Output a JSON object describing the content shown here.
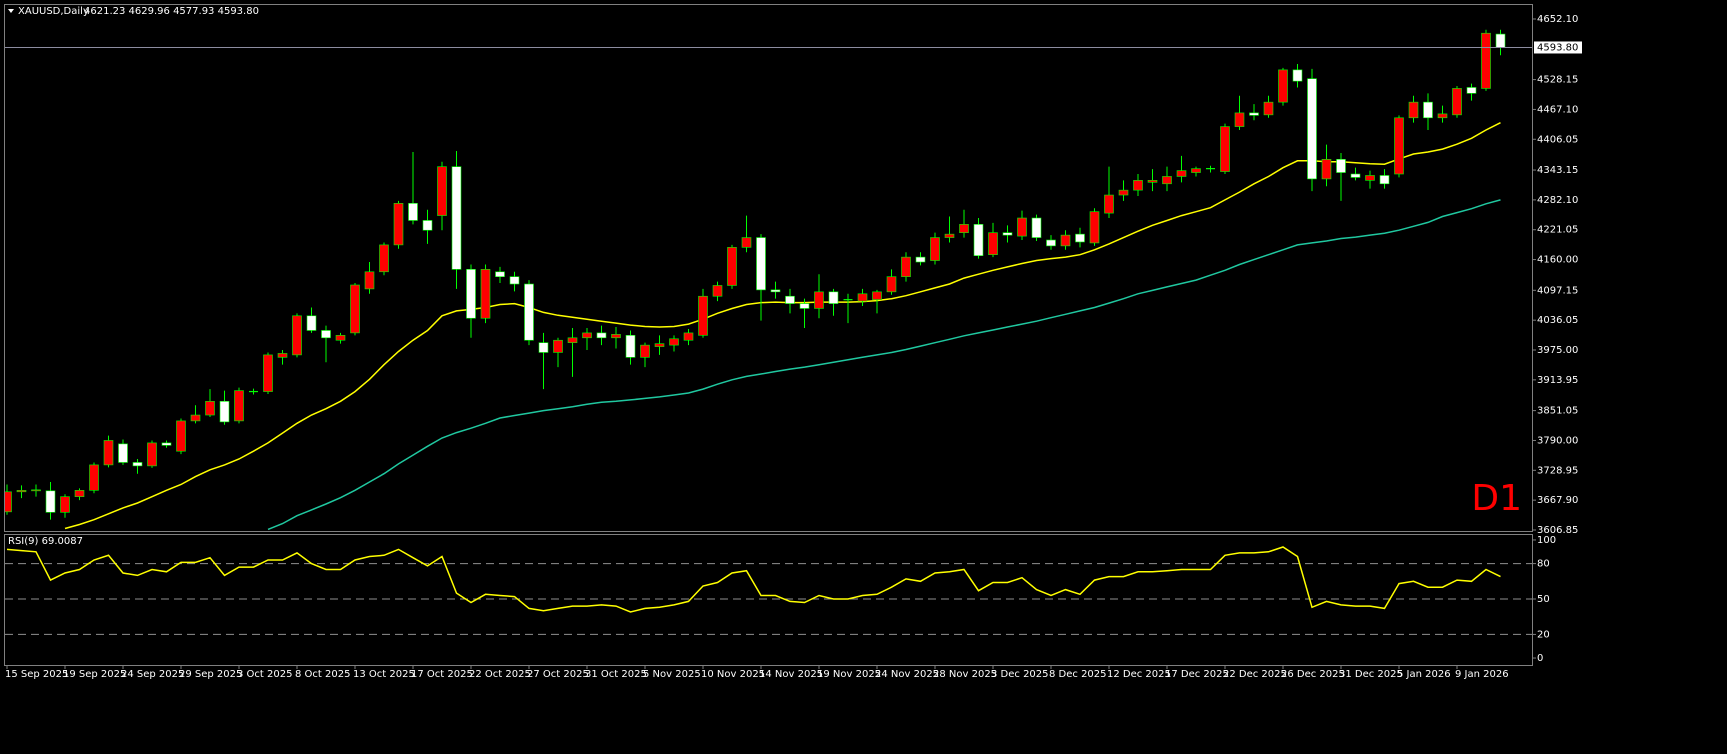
{
  "chart_data": [
    {
      "type": "candlestick",
      "title": "XAUUSD,Daily",
      "subtitle": "4621.23 4629.96 4577.93 4593.80",
      "annotation": "D1",
      "categories": [
        "15 Sep 2025",
        null,
        null,
        null,
        "19 Sep 2025",
        null,
        null,
        null,
        "24 Sep 2025",
        null,
        null,
        null,
        "29 Sep 2025",
        null,
        null,
        null,
        "3 Oct 2025",
        null,
        null,
        null,
        "8 Oct 2025",
        null,
        null,
        null,
        "13 Oct 2025",
        null,
        null,
        null,
        "17 Oct 2025",
        null,
        null,
        null,
        "22 Oct 2025",
        null,
        null,
        null,
        "27 Oct 2025",
        null,
        null,
        null,
        "31 Oct 2025",
        null,
        null,
        null,
        "5 Nov 2025",
        null,
        null,
        null,
        "10 Nov 2025",
        null,
        null,
        null,
        "14 Nov 2025",
        null,
        null,
        null,
        "19 Nov 2025",
        null,
        null,
        null,
        "24 Nov 2025",
        null,
        null,
        null,
        "28 Nov 2025",
        null,
        null,
        null,
        "3 Dec 2025",
        null,
        null,
        null,
        "8 Dec 2025",
        null,
        null,
        null,
        "12 Dec 2025",
        null,
        null,
        null,
        "17 Dec 2025",
        null,
        null,
        null,
        "22 Dec 2025",
        null,
        null,
        null,
        "26 Dec 2025",
        null,
        null,
        null,
        "31 Dec 2025",
        null,
        null,
        null,
        "5 Jan 2026",
        null,
        null,
        null,
        "9 Jan 2026",
        null,
        null,
        null
      ],
      "open": [
        3644,
        3685,
        3688,
        3687,
        3643,
        3675,
        3688,
        3740,
        3783,
        3745,
        3738,
        3785,
        3768,
        3830,
        3842,
        3870,
        3830,
        3890,
        3890,
        3960,
        3965,
        4045,
        4015,
        3995,
        4010,
        4100,
        4135,
        4190,
        4275,
        4240,
        4250,
        4350,
        4140,
        4040,
        4135,
        4125,
        4110,
        3990,
        3970,
        3990,
        4000,
        4010,
        4000,
        4005,
        3960,
        3982,
        3985,
        3995,
        4005,
        4085,
        4107,
        4185,
        4205,
        4098,
        4085,
        4070,
        4060,
        4094,
        4078,
        4075,
        4078,
        4094,
        4125,
        4165,
        4158,
        4205,
        4215,
        4232,
        4170,
        4215,
        4208,
        4245,
        4200,
        4188,
        4212,
        4194,
        4255,
        4292,
        4302,
        4318,
        4315,
        4330,
        4338,
        4346,
        4340,
        4432,
        4460,
        4456,
        4482,
        4548,
        4530,
        4325,
        4365,
        4335,
        4322,
        4332,
        4335,
        4450,
        4482,
        4450,
        4456,
        4512,
        4510,
        4621.23
      ],
      "high": [
        3700,
        3698,
        3700,
        3705,
        3680,
        3692,
        3745,
        3800,
        3792,
        3752,
        3790,
        3790,
        3835,
        3862,
        3895,
        3892,
        3898,
        3896,
        3970,
        3975,
        4050,
        4062,
        4025,
        4010,
        4112,
        4155,
        4195,
        4280,
        4380,
        4262,
        4360,
        4382,
        4150,
        4150,
        4145,
        4135,
        4118,
        4010,
        4000,
        4020,
        4020,
        4025,
        4022,
        4015,
        3990,
        4005,
        4005,
        4018,
        4100,
        4115,
        4190,
        4250,
        4212,
        4115,
        4100,
        4080,
        4130,
        4100,
        4090,
        4100,
        4098,
        4140,
        4175,
        4175,
        4215,
        4248,
        4262,
        4245,
        4235,
        4230,
        4260,
        4252,
        4210,
        4220,
        4225,
        4265,
        4350,
        4322,
        4335,
        4345,
        4350,
        4372,
        4350,
        4352,
        4438,
        4495,
        4478,
        4495,
        4552,
        4560,
        4550,
        4395,
        4378,
        4348,
        4342,
        4345,
        4455,
        4495,
        4500,
        4475,
        4515,
        4520,
        4630,
        4629.96
      ],
      "low": [
        3638,
        3672,
        3675,
        3628,
        3632,
        3668,
        3682,
        3735,
        3740,
        3722,
        3734,
        3775,
        3762,
        3825,
        3838,
        3822,
        3825,
        3884,
        3885,
        3945,
        3960,
        4010,
        3950,
        3988,
        4005,
        4090,
        4128,
        4182,
        4232,
        4192,
        4220,
        4100,
        4000,
        4030,
        4112,
        4095,
        3985,
        3895,
        3940,
        3920,
        3975,
        3985,
        3978,
        3945,
        3940,
        3965,
        3972,
        3985,
        4000,
        4075,
        4100,
        4175,
        4035,
        4080,
        4050,
        4020,
        4040,
        4045,
        4030,
        4065,
        4050,
        4088,
        4115,
        4148,
        4150,
        4195,
        4205,
        4162,
        4165,
        4195,
        4200,
        4198,
        4180,
        4180,
        4185,
        4188,
        4245,
        4280,
        4290,
        4300,
        4300,
        4318,
        4330,
        4338,
        4335,
        4425,
        4445,
        4450,
        4475,
        4512,
        4300,
        4310,
        4280,
        4322,
        4305,
        4305,
        4328,
        4440,
        4425,
        4440,
        4450,
        4485,
        4505,
        4577.93
      ],
      "close": [
        3685,
        3688,
        3689,
        3643,
        3675,
        3688,
        3740,
        3790,
        3745,
        3738,
        3785,
        3780,
        3830,
        3842,
        3870,
        3828,
        3892,
        3890,
        3965,
        3968,
        4045,
        4015,
        4000,
        4005,
        4108,
        4135,
        4190,
        4275,
        4240,
        4220,
        4350,
        4140,
        4040,
        4140,
        4125,
        4110,
        3995,
        3970,
        3995,
        4000,
        4010,
        4000,
        4007,
        3960,
        3985,
        3988,
        3998,
        4010,
        4085,
        4107,
        4185,
        4205,
        4098,
        4094,
        4070,
        4060,
        4094,
        4070,
        4078,
        4090,
        4094,
        4125,
        4165,
        4155,
        4205,
        4212,
        4232,
        4168,
        4215,
        4210,
        4245,
        4205,
        4188,
        4210,
        4196,
        4258,
        4292,
        4302,
        4322,
        4322,
        4330,
        4342,
        4346,
        4346,
        4432,
        4460,
        4455,
        4482,
        4548,
        4525,
        4325,
        4365,
        4338,
        4328,
        4332,
        4315,
        4450,
        4482,
        4450,
        4458,
        4510,
        4500,
        4623,
        4593.8
      ],
      "up_color": "#ff0000",
      "down_color": "#ffffff",
      "wick_color": "#00ff00",
      "overlays": [
        {
          "color": "#ffff00",
          "values": [
            null,
            null,
            null,
            null,
            3610,
            3618,
            3628,
            3640,
            3652,
            3662,
            3675,
            3688,
            3700,
            3716,
            3730,
            3740,
            3752,
            3768,
            3785,
            3805,
            3825,
            3842,
            3855,
            3870,
            3890,
            3915,
            3945,
            3972,
            3995,
            4015,
            4045,
            4055,
            4058,
            4062,
            4068,
            4070,
            4062,
            4052,
            4046,
            4042,
            4038,
            4034,
            4030,
            4026,
            4023,
            4022,
            4023,
            4028,
            4038,
            4050,
            4060,
            4068,
            4072,
            4073,
            4072,
            4072,
            4073,
            4073,
            4073,
            4074,
            4076,
            4080,
            4086,
            4094,
            4102,
            4110,
            4122,
            4130,
            4138,
            4145,
            4152,
            4158,
            4162,
            4165,
            4170,
            4180,
            4192,
            4205,
            4218,
            4230,
            4240,
            4250,
            4258,
            4266,
            4282,
            4298,
            4315,
            4330,
            4348,
            4362,
            4362,
            4360,
            4360,
            4358,
            4356,
            4355,
            4366,
            4376,
            4380,
            4386,
            4396,
            4408,
            4425,
            4440
          ]
        },
        {
          "color": "#20c8a0",
          "values": [
            null,
            null,
            null,
            null,
            null,
            null,
            null,
            null,
            null,
            null,
            null,
            null,
            null,
            null,
            null,
            null,
            null,
            null,
            3608,
            3620,
            3636,
            3648,
            3660,
            3673,
            3688,
            3705,
            3722,
            3742,
            3760,
            3778,
            3795,
            3806,
            3815,
            3825,
            3836,
            3841,
            3846,
            3851,
            3855,
            3859,
            3864,
            3868,
            3870,
            3873,
            3876,
            3879,
            3883,
            3887,
            3895,
            3905,
            3914,
            3921,
            3926,
            3931,
            3936,
            3940,
            3945,
            3950,
            3955,
            3960,
            3965,
            3970,
            3976,
            3983,
            3990,
            3997,
            4004,
            4010,
            4016,
            4022,
            4028,
            4034,
            4041,
            4048,
            4055,
            4062,
            4071,
            4080,
            4090,
            4097,
            4104,
            4111,
            4118,
            4128,
            4138,
            4150,
            4160,
            4170,
            4180,
            4190,
            4194,
            4198,
            4203,
            4206,
            4210,
            4214,
            4220,
            4228,
            4236,
            4248,
            4256,
            4264,
            4274,
            4282
          ]
        }
      ],
      "ylim": [
        3604.8,
        4680.7
      ],
      "yticks": [
        {
          "value": 4652.1,
          "label": "4652.10"
        },
        {
          "value": 4528.15,
          "label": "4528.15"
        },
        {
          "value": 4467.1,
          "label": "4467.10"
        },
        {
          "value": 4406.05,
          "label": "4406.05"
        },
        {
          "value": 4343.15,
          "label": "4343.15"
        },
        {
          "value": 4282.1,
          "label": "4282.10"
        },
        {
          "value": 4221.05,
          "label": "4221.05"
        },
        {
          "value": 4160,
          "label": "4160.00"
        },
        {
          "value": 4097.15,
          "label": "4097.15"
        },
        {
          "value": 4036.05,
          "label": "4036.05"
        },
        {
          "value": 3975,
          "label": "3975.00"
        },
        {
          "value": 3913.95,
          "label": "3913.95"
        },
        {
          "value": 3851.05,
          "label": "3851.05"
        },
        {
          "value": 3790,
          "label": "3790.00"
        },
        {
          "value": 3728.95,
          "label": "3728.95"
        },
        {
          "value": 3667.9,
          "label": "3667.90"
        },
        {
          "value": 3606.85,
          "label": "3606.85"
        }
      ],
      "last_price": {
        "value": 4593.8,
        "label": "4593.80"
      }
    },
    {
      "type": "line",
      "title": "RSI(9) 69.0087",
      "color": "#ffff00",
      "values": [
        92,
        91,
        90,
        66,
        72,
        75,
        83,
        87,
        72,
        70,
        75,
        73,
        81,
        81,
        85,
        70,
        77,
        77,
        83,
        83,
        89,
        80,
        75,
        75,
        83,
        86,
        87,
        92,
        85,
        78,
        86,
        55,
        47,
        54,
        53,
        52,
        42,
        40,
        42,
        44,
        44,
        45,
        44,
        39,
        42,
        43,
        45,
        48,
        61,
        64,
        72,
        74,
        53,
        53,
        48,
        47,
        53,
        50,
        50,
        53,
        54,
        60,
        67,
        65,
        72,
        73,
        75,
        57,
        64,
        64,
        68,
        58,
        53,
        58,
        54,
        66,
        69,
        69,
        73,
        73,
        74,
        75,
        75,
        75,
        87,
        89,
        89,
        90,
        94,
        86,
        43,
        48,
        45,
        44,
        44,
        42,
        63,
        65,
        60,
        60,
        66,
        65,
        75,
        69.0087
      ],
      "ylim": [
        -5.9,
        104.2
      ],
      "yticks": [
        0,
        20,
        50,
        80,
        100
      ],
      "levels": [
        20,
        50,
        80
      ]
    }
  ]
}
